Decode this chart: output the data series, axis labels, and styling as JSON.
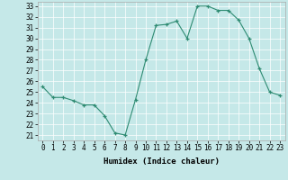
{
  "x": [
    0,
    1,
    2,
    3,
    4,
    5,
    6,
    7,
    8,
    9,
    10,
    11,
    12,
    13,
    14,
    15,
    16,
    17,
    18,
    19,
    20,
    21,
    22,
    23
  ],
  "y": [
    25.5,
    24.5,
    24.5,
    24.2,
    23.8,
    23.8,
    22.8,
    21.2,
    21.0,
    24.3,
    28.0,
    31.2,
    31.3,
    31.6,
    30.0,
    33.0,
    33.0,
    32.6,
    32.6,
    31.7,
    30.0,
    27.2,
    25.0,
    24.7
  ],
  "xlabel": "Humidex (Indice chaleur)",
  "xlim": [
    -0.5,
    23.5
  ],
  "ylim": [
    20.5,
    33.4
  ],
  "yticks": [
    21,
    22,
    23,
    24,
    25,
    26,
    27,
    28,
    29,
    30,
    31,
    32,
    33
  ],
  "xtick_labels": [
    "0",
    "1",
    "2",
    "3",
    "4",
    "5",
    "6",
    "7",
    "8",
    "9",
    "10",
    "11",
    "12",
    "13",
    "14",
    "15",
    "16",
    "17",
    "18",
    "19",
    "20",
    "21",
    "22",
    "23"
  ],
  "line_color": "#2e8b72",
  "bg_color": "#c5e8e8",
  "grid_color": "#b0d8d8",
  "xlabel_fontsize": 6.5,
  "tick_fontsize": 5.5
}
